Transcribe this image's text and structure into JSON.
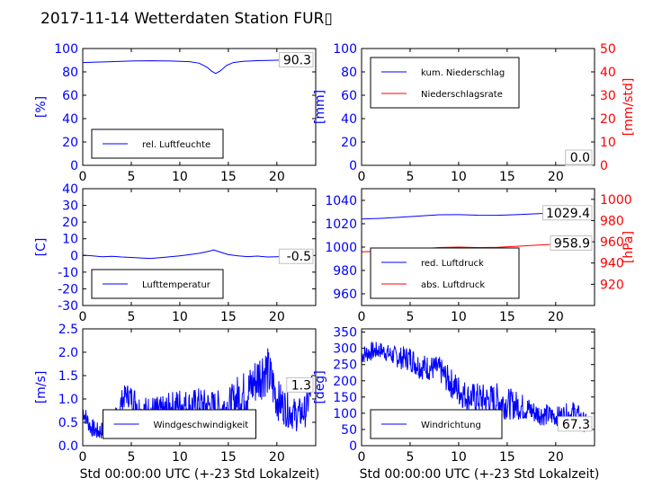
{
  "title": "2017-11-14 Wetterdaten Station FUR▯",
  "xlabel": "Std 00:00:00 UTC (+-23 Std Lokalzeit)",
  "colors": {
    "blue": "#0000ff",
    "red": "#ff0000",
    "axis": "#000000"
  },
  "chart_data": [
    {
      "id": "humidity",
      "type": "line",
      "xlim": [
        0,
        24
      ],
      "ylim": [
        0,
        100
      ],
      "xticks": [
        0,
        5,
        10,
        15,
        20
      ],
      "yticks": [
        0,
        20,
        40,
        60,
        80,
        100
      ],
      "ylabel": "[%]",
      "legend_loc": "lower-left",
      "last_value_label": "90.3",
      "series": [
        {
          "name": "rel. Luftfeuchte",
          "color": "blue",
          "x": [
            0,
            1,
            3,
            5,
            7,
            9,
            10,
            11,
            12,
            12.8,
            13.3,
            13.7,
            14.2,
            14.8,
            15.5,
            16.5,
            18,
            20,
            22,
            23.6
          ],
          "y": [
            88,
            88.3,
            88.8,
            89.3,
            89.5,
            89.3,
            89,
            88.8,
            87.5,
            84,
            80.5,
            78.6,
            81,
            85.5,
            88,
            89,
            89.6,
            90,
            90.2,
            90.3
          ]
        }
      ]
    },
    {
      "id": "precip",
      "type": "line",
      "xlim": [
        0,
        24
      ],
      "ylim": [
        0,
        100
      ],
      "ylim_right": [
        0,
        50
      ],
      "xticks": [
        0,
        5,
        10,
        15,
        20
      ],
      "yticks": [
        0,
        20,
        40,
        60,
        80,
        100
      ],
      "yticks_right": [
        0,
        10,
        20,
        30,
        40,
        50
      ],
      "ylabel": "[mm]",
      "ylabel_right": "[mm/std]",
      "legend_loc": "upper-left",
      "last_value_label": "0.0",
      "last_value_label_2": "0.0",
      "series": [
        {
          "name": "kum. Niederschlag",
          "color": "blue",
          "axis": "left",
          "x": [
            0,
            23.6
          ],
          "y": [
            0,
            0
          ]
        },
        {
          "name": "Niederschlagsrate",
          "color": "red",
          "axis": "right",
          "x": [
            0,
            23.6
          ],
          "y": [
            0,
            0
          ]
        }
      ]
    },
    {
      "id": "temperature",
      "type": "line",
      "xlim": [
        0,
        24
      ],
      "ylim": [
        -30,
        40
      ],
      "xticks": [
        0,
        5,
        10,
        15,
        20
      ],
      "yticks": [
        -30,
        -20,
        -10,
        0,
        10,
        20,
        30,
        40
      ],
      "ylabel": "[C]",
      "legend_loc": "lower-left",
      "last_value_label": "-0.5",
      "series": [
        {
          "name": "Lufttemperatur",
          "color": "blue",
          "x": [
            0,
            1,
            2,
            3,
            4,
            5,
            6,
            7,
            8,
            9,
            10,
            11,
            12,
            13,
            13.5,
            14,
            15,
            16,
            17,
            18,
            19,
            20,
            21,
            22,
            23,
            23.6
          ],
          "y": [
            0.2,
            -0.3,
            -0.8,
            -0.5,
            -0.9,
            -1.2,
            -1.5,
            -1.8,
            -1.3,
            -0.8,
            -0.2,
            0.5,
            1.3,
            2.5,
            3.3,
            2.3,
            0.5,
            -0.3,
            -0.7,
            -0.4,
            -0.9,
            -0.8,
            -0.6,
            -0.9,
            -0.5,
            -0.5
          ]
        }
      ]
    },
    {
      "id": "pressure",
      "type": "line",
      "xlim": [
        0,
        24
      ],
      "ylim": [
        950,
        1050
      ],
      "ylim_right": [
        900,
        1010
      ],
      "xticks": [
        0,
        5,
        10,
        15,
        20
      ],
      "yticks": [
        960,
        980,
        1000,
        1020,
        1040
      ],
      "yticks_right": [
        920,
        940,
        960,
        980,
        1000
      ],
      "ylabel": "",
      "ylabel_right": "[hPa]",
      "legend_loc": "lower-left",
      "last_value_label": "1029.4",
      "last_value_label_2": "958.9",
      "series": [
        {
          "name": "red. Luftdruck",
          "color": "blue",
          "axis": "left",
          "x": [
            0,
            2,
            4,
            6,
            8,
            10,
            12,
            14,
            16,
            18,
            20,
            22,
            23.6
          ],
          "y": [
            1024,
            1024.6,
            1025.5,
            1026.6,
            1027.7,
            1027.8,
            1027.3,
            1027.2,
            1027.8,
            1028.5,
            1029.2,
            1029.4,
            1029.4
          ]
        },
        {
          "name": "abs. Luftdruck",
          "color": "red",
          "axis": "right",
          "x": [
            0,
            2,
            4,
            6,
            8,
            10,
            12,
            14,
            16,
            18,
            20,
            22,
            23.6
          ],
          "y": [
            950.5,
            951.2,
            952.3,
            953.4,
            954.6,
            955,
            954.6,
            954.8,
            955.8,
            956.8,
            957.8,
            958.5,
            958.9
          ]
        }
      ]
    },
    {
      "id": "windspeed",
      "type": "line",
      "xlim": [
        0,
        24
      ],
      "ylim": [
        0,
        2.5
      ],
      "xticks": [
        0,
        5,
        10,
        15,
        20
      ],
      "yticks": [
        0.0,
        0.5,
        1.0,
        1.5,
        2.0,
        2.5
      ],
      "ylabel": "[m/s]",
      "legend_loc": "lower-center",
      "last_value_label": "1.3",
      "series": [
        {
          "name": "Windgeschwindigkeit",
          "color": "blue",
          "noisy": true,
          "x": [
            0,
            0.8,
            1.5,
            2.5,
            3.5,
            4,
            4.5,
            5.5,
            6,
            7,
            8,
            9,
            10,
            11,
            12,
            13,
            14,
            15,
            15.5,
            16,
            17,
            18,
            18.5,
            19,
            19.5,
            20,
            21,
            22,
            23,
            23.6
          ],
          "y": [
            0.75,
            0.4,
            0.3,
            0.35,
            0.6,
            0.95,
            1.1,
            0.95,
            0.7,
            0.75,
            0.7,
            0.8,
            0.9,
            0.85,
            0.9,
            0.85,
            0.8,
            0.85,
            0.9,
            1.05,
            1.15,
            1.45,
            1.6,
            1.6,
            1.35,
            1.0,
            0.8,
            0.65,
            0.75,
            1.3
          ],
          "amp": [
            0.2,
            0.2,
            0.2,
            0.2,
            0.25,
            0.25,
            0.25,
            0.3,
            0.35,
            0.35,
            0.35,
            0.35,
            0.35,
            0.35,
            0.35,
            0.35,
            0.4,
            0.4,
            0.45,
            0.5,
            0.5,
            0.55,
            0.6,
            0.55,
            0.55,
            0.45,
            0.4,
            0.35,
            0.35,
            0.3
          ]
        }
      ]
    },
    {
      "id": "winddir",
      "type": "line",
      "xlim": [
        0,
        24
      ],
      "ylim": [
        0,
        360
      ],
      "xticks": [
        0,
        5,
        10,
        15,
        20
      ],
      "yticks": [
        0,
        50,
        100,
        150,
        200,
        250,
        300,
        350
      ],
      "ylabel": "[deg]",
      "legend_loc": "lower-left",
      "last_value_label": "67.3",
      "series": [
        {
          "name": "Windrichtung",
          "color": "blue",
          "noisy": true,
          "x": [
            0,
            1,
            2,
            3,
            4,
            5,
            6,
            7,
            8,
            9,
            10,
            11,
            12,
            13,
            14,
            15,
            16,
            17,
            18,
            19,
            20,
            21,
            22,
            22.5,
            23,
            23.6
          ],
          "y": [
            280,
            290,
            295,
            280,
            270,
            270,
            245,
            240,
            235,
            200,
            170,
            150,
            145,
            140,
            140,
            130,
            125,
            115,
            100,
            95,
            90,
            95,
            100,
            85,
            70,
            67
          ],
          "amp": [
            30,
            30,
            25,
            30,
            35,
            40,
            40,
            40,
            40,
            45,
            50,
            45,
            50,
            50,
            55,
            50,
            45,
            40,
            35,
            35,
            30,
            35,
            40,
            35,
            30,
            30
          ]
        }
      ]
    }
  ]
}
